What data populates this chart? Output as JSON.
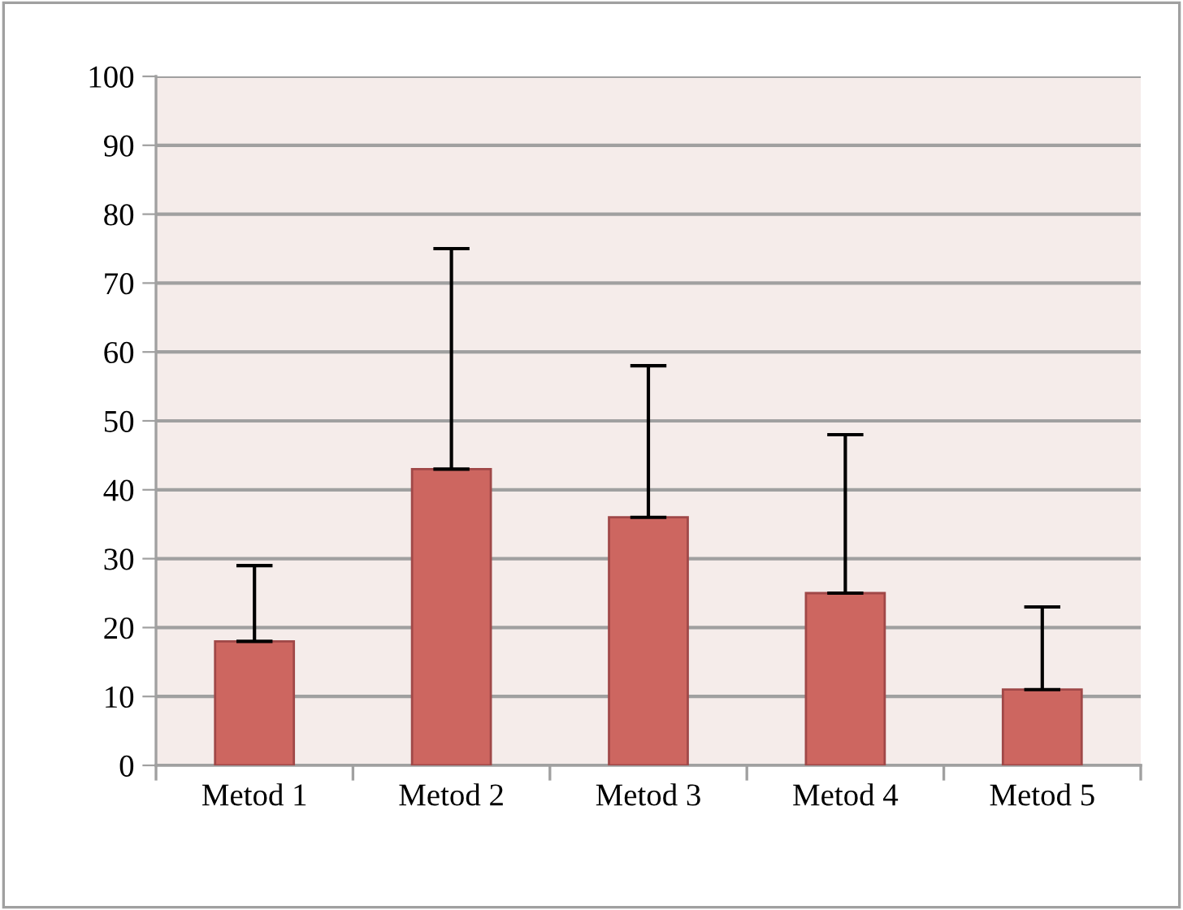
{
  "chart_data": {
    "type": "bar",
    "categories": [
      "Metod 1",
      "Metod 2",
      "Metod 3",
      "Metod 4",
      "Metod 5"
    ],
    "values": [
      18,
      43,
      36,
      25,
      11
    ],
    "errors": [
      [
        18,
        29
      ],
      [
        43,
        75
      ],
      [
        36,
        58
      ],
      [
        25,
        48
      ],
      [
        11,
        23
      ]
    ],
    "color": "#cd6660",
    "ylim": [
      0,
      100
    ],
    "yticks": [
      0,
      10,
      20,
      30,
      40,
      50,
      60,
      70,
      80,
      90,
      100
    ],
    "grid": "y",
    "legend": false
  }
}
